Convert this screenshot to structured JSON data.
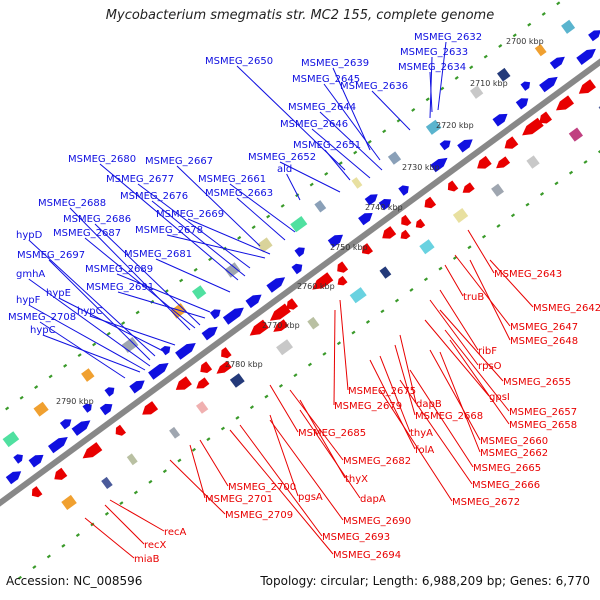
{
  "title": "Mycobacterium smegmatis str. MC2 155, complete genome",
  "footer": {
    "accession": "Accession: NC_008596",
    "summary": "Topology: circular; Length: 6,988,209 bp; Genes: 6,770"
  },
  "colors": {
    "forward": "#1010e0",
    "reverse": "#e80000",
    "backbone": "#888888"
  },
  "ticks": [
    "2700 kbp",
    "2710 kbp",
    "2720 kbp",
    "2730 kbp",
    "2740 kbp",
    "2750 kbp",
    "2760 kbp",
    "2770 kbp",
    "2780 kbp",
    "2790 kbp"
  ],
  "forward_labels": [
    "MSMEG_2632",
    "MSMEG_2633",
    "MSMEG_2634",
    "MSMEG_2650",
    "MSMEG_2639",
    "MSMEG_2636",
    "MSMEG_2645",
    "MSMEG_2644",
    "MSMEG_2646",
    "MSMEG_2651",
    "MSMEG_2652",
    "ald",
    "MSMEG_2680",
    "MSMEG_2667",
    "MSMEG_2677",
    "MSMEG_2661",
    "MSMEG_2676",
    "MSMEG_2663",
    "MSMEG_2688",
    "MSMEG_2669",
    "MSMEG_2686",
    "MSMEG_2678",
    "hypD",
    "MSMEG_2687",
    "MSMEG_2681",
    "MSMEG_2697",
    "gmhA",
    "MSMEG_2689",
    "hypE",
    "MSMEG_2691",
    "hypF",
    "MSMEG_2708",
    "hypC",
    "hypC"
  ],
  "reverse_labels": [
    "MSMEG_2643",
    "MSMEG_2642",
    "truB",
    "MSMEG_2647",
    "MSMEG_2648",
    "ribF",
    "rpsO",
    "MSMEG_2655",
    "gpsI",
    "MSMEG_2675",
    "MSMEG_2679",
    "dapB",
    "MSMEG_2657",
    "MSMEG_2668",
    "MSMEG_2658",
    "thyA",
    "MSMEG_2660",
    "MSMEG_2662",
    "folA",
    "MSMEG_2665",
    "MSMEG_2666",
    "MSMEG_2685",
    "MSMEG_2672",
    "MSMEG_2682",
    "thyX",
    "MSMEG_2700",
    "dapA",
    "MSMEG_2701",
    "pgsA",
    "MSMEG_2709",
    "MSMEG_2690",
    "recA",
    "MSMEG_2693",
    "recX",
    "MSMEG_2694",
    "miaB"
  ]
}
